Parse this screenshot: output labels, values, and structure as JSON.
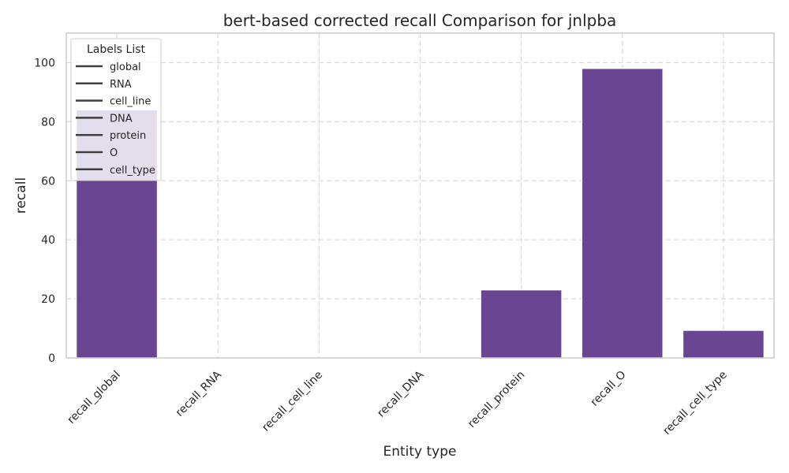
{
  "chart_data": {
    "type": "bar",
    "title": "bert-based corrected recall Comparison for jnlpba",
    "xlabel": "Entity type",
    "ylabel": "recall",
    "categories": [
      "recall_global",
      "recall_RNA",
      "recall_cell_line",
      "recall_DNA",
      "recall_protein",
      "recall_O",
      "recall_cell_type"
    ],
    "values": [
      84,
      0,
      0,
      0,
      23,
      98,
      9.3
    ],
    "ylim": [
      0,
      110
    ],
    "yticks": [
      0,
      20,
      40,
      60,
      80,
      100
    ],
    "grid": true,
    "bar_color": "#6a4591",
    "legend": {
      "title": "Labels List",
      "placement": "top-left",
      "entries": [
        "global",
        "RNA",
        "cell_line",
        "DNA",
        "protein",
        "O",
        "cell_type"
      ]
    }
  }
}
